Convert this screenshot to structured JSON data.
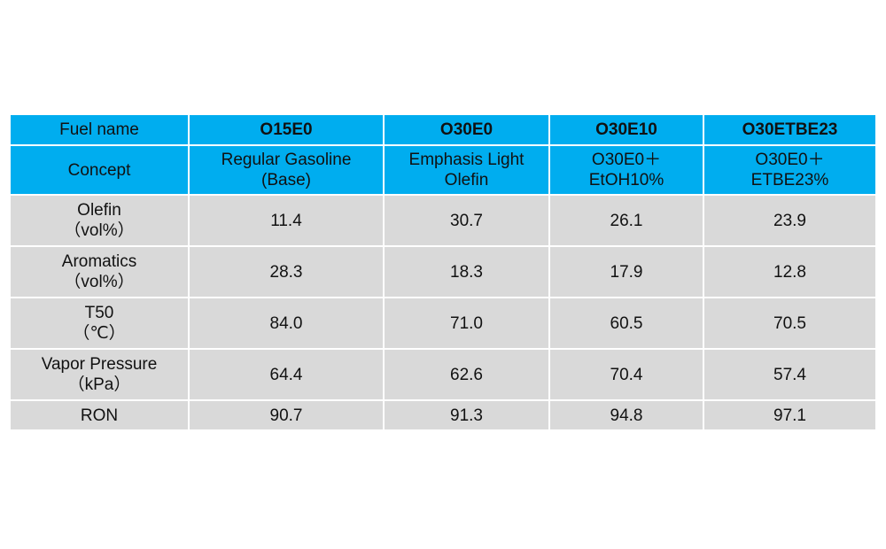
{
  "table": {
    "columns": {
      "header_label": "Fuel name",
      "fuels": [
        "O15E0",
        "O30E0",
        "O30E10",
        "O30ETBE23"
      ]
    },
    "concept_row": {
      "label": "Concept",
      "values": [
        [
          "Regular Gasoline",
          "(Base)"
        ],
        [
          "Emphasis Light",
          "Olefin"
        ],
        [
          "O30E0＋",
          "EtOH10%"
        ],
        [
          "O30E0＋",
          "ETBE23%"
        ]
      ]
    },
    "rows": [
      {
        "label": [
          "Olefin",
          "（vol%）"
        ],
        "values": [
          "11.4",
          "30.7",
          "26.1",
          "23.9"
        ]
      },
      {
        "label": [
          "Aromatics",
          "（vol%）"
        ],
        "values": [
          "28.3",
          "18.3",
          "17.9",
          "12.8"
        ]
      },
      {
        "label": [
          "T50",
          "（℃）"
        ],
        "values": [
          "84.0",
          "71.0",
          "60.5",
          "70.5"
        ]
      },
      {
        "label": [
          "Vapor Pressure",
          "（kPa）"
        ],
        "values": [
          "64.4",
          "62.6",
          "70.4",
          "57.4"
        ]
      },
      {
        "label": [
          "RON"
        ],
        "values": [
          "90.7",
          "91.3",
          "94.8",
          "97.1"
        ]
      }
    ]
  },
  "colors": {
    "header_bg": "#00adef",
    "body_bg": "#d9d9d9",
    "border": "#ffffff"
  }
}
